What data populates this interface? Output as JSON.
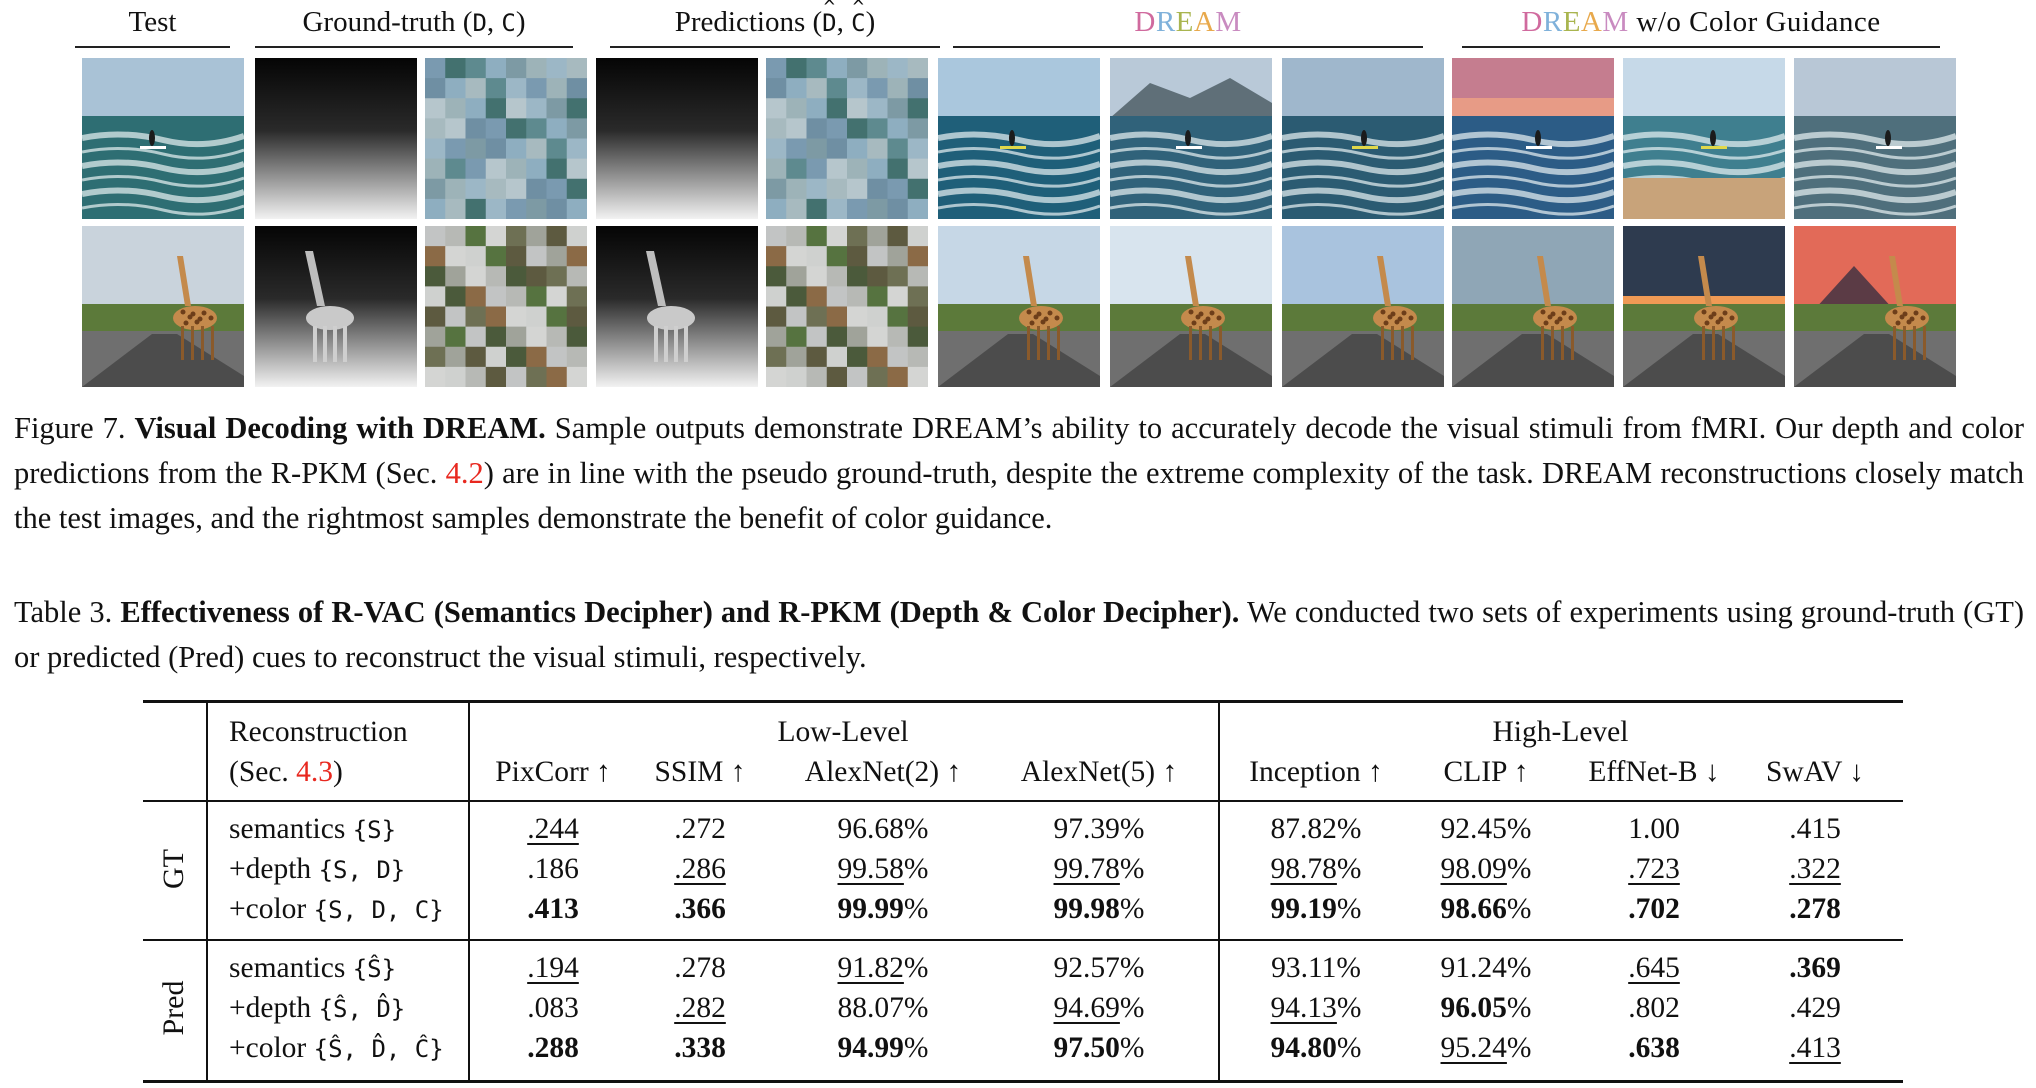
{
  "figure": {
    "columns": [
      {
        "label": "Test"
      },
      {
        "label": "Ground-truth",
        "sym": "(D, C)"
      },
      {
        "label": "Predictions",
        "sym": "(D̂, Ĉ)"
      },
      {
        "label": "DREAM"
      },
      {
        "label": "DREAM",
        "suffix": " w/o Color Guidance"
      }
    ],
    "dream_letter_colors": [
      "#d06a9e",
      "#7fb1da",
      "#a9b54f",
      "#e8a94c",
      "#c98bc0"
    ],
    "caption_num": "Figure 7.",
    "caption_title": "Visual Decoding with DREAM.",
    "caption_a": "Sample outputs demonstrate DREAM’s ability to accurately decode the visual stimuli from fMRI. Our depth and color predictions from the R-PKM (Sec.",
    "caption_ref": "4.2",
    "caption_b": ") are in line with the pseudo ground-truth, despite the extreme complexity of the task. DREAM reconstructions closely match the test images, and the rightmost samples demonstrate the benefit of color guidance."
  },
  "table": {
    "caption_num": "Table 3.",
    "caption_title": "Effectiveness of R-VAC (Semantics Decipher) and R-PKM (Depth & Color Decipher).",
    "caption_text": "We conducted two sets of experiments using ground-truth (GT) or predicted (Pred) cues to reconstruct the visual stimuli, respectively.",
    "recon_header_1": "Reconstruction",
    "recon_header_2a": "(Sec.",
    "recon_header_ref": "4.3",
    "recon_header_2b": ")",
    "group_low": "Low-Level",
    "group_high": "High-Level",
    "metrics": [
      "PixCorr ↑",
      "SSIM ↑",
      "AlexNet(2) ↑",
      "AlexNet(5) ↑",
      "Inception ↑",
      "CLIP ↑",
      "EffNet-B ↓",
      "SwAV ↓"
    ],
    "sections": [
      {
        "label": "GT",
        "rows": [
          {
            "name": "semantics",
            "cue": "{S}",
            "values": [
              ".244",
              ".272",
              "96.68%",
              "97.39%",
              "87.82%",
              "92.45%",
              "1.00",
              ".415"
            ],
            "style": [
              "u",
              "",
              "",
              "",
              "",
              "",
              "",
              ""
            ]
          },
          {
            "name": "+depth",
            "cue": "{S, D}",
            "values": [
              ".186",
              ".286",
              "99.58%",
              "99.78%",
              "98.78%",
              "98.09%",
              ".723",
              ".322"
            ],
            "style": [
              "",
              "u",
              "u",
              "u",
              "u",
              "u",
              "u",
              "u"
            ]
          },
          {
            "name": "+color",
            "cue": "{S, D, C}",
            "values": [
              ".413",
              ".366",
              "99.99%",
              "99.98%",
              "99.19%",
              "98.66%",
              ".702",
              ".278"
            ],
            "style": [
              "b",
              "b",
              "b",
              "b",
              "b",
              "b",
              "b",
              "b"
            ]
          }
        ]
      },
      {
        "label": "Pred",
        "rows": [
          {
            "name": "semantics",
            "cue": "{Ŝ}",
            "values": [
              ".194",
              ".278",
              "91.82%",
              "92.57%",
              "93.11%",
              "91.24%",
              ".645",
              ".369"
            ],
            "style": [
              "u",
              "",
              "u",
              "",
              "",
              "",
              "u",
              "b"
            ]
          },
          {
            "name": "+depth",
            "cue": "{Ŝ, D̂}",
            "values": [
              ".083",
              ".282",
              "88.07%",
              "94.69%",
              "94.13%",
              "96.05%",
              ".802",
              ".429"
            ],
            "style": [
              "",
              "u",
              "",
              "u",
              "u",
              "b",
              "",
              ""
            ]
          },
          {
            "name": "+color",
            "cue": "{Ŝ, D̂, Ĉ}",
            "values": [
              ".288",
              ".338",
              "94.99%",
              "97.50%",
              "94.80%",
              "95.24%",
              ".638",
              ".413"
            ],
            "style": [
              "b",
              "b",
              "b",
              "b",
              "b",
              "u",
              "b",
              "u"
            ]
          }
        ]
      }
    ]
  }
}
